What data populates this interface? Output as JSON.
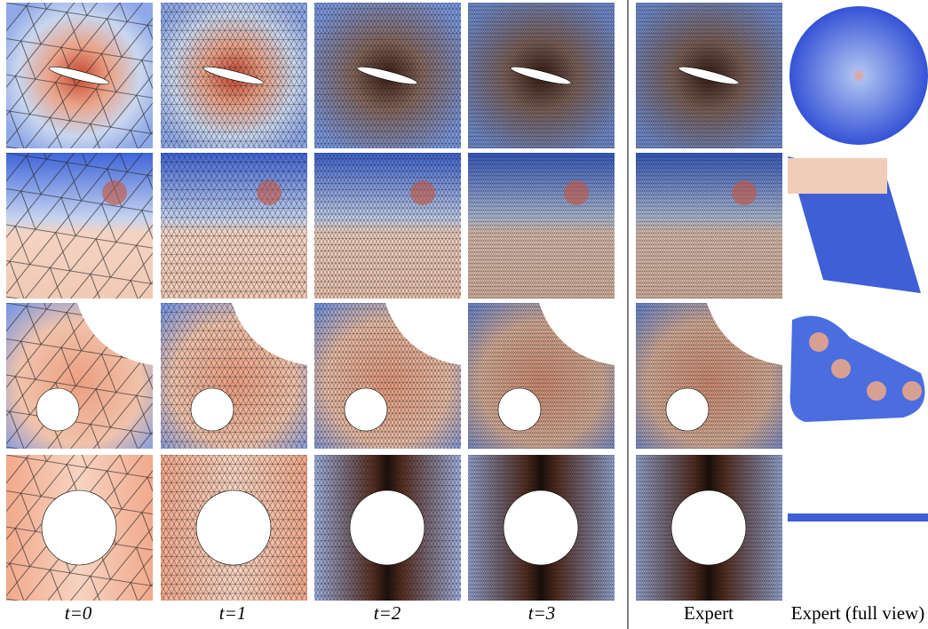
{
  "columns": [
    {
      "label": "t=0"
    },
    {
      "label": "t=1"
    },
    {
      "label": "t=2"
    },
    {
      "label": "t=3"
    },
    {
      "label": "Expert"
    },
    {
      "label": "Expert (full view)"
    }
  ]
}
